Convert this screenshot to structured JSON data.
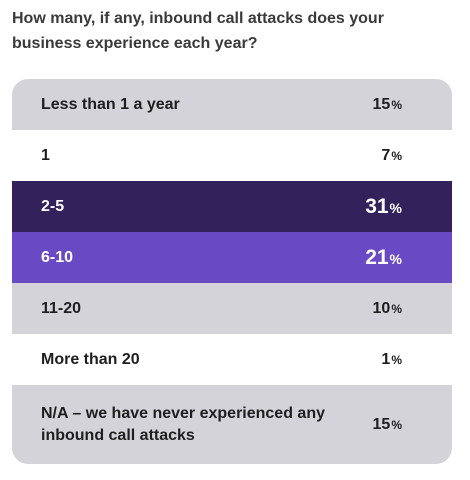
{
  "question": "How many, if any, inbound call attacks does your business experience each year?",
  "colors": {
    "gray": "#d4d3d9",
    "white": "#ffffff",
    "dark_purple": "#33215c",
    "purple": "#6a49c5"
  },
  "chart_data": {
    "type": "table",
    "title": "How many, if any, inbound call attacks does your business experience each year?",
    "rows": [
      {
        "label": "Less than 1 a year",
        "value": 15,
        "display": "15",
        "unit": "%",
        "color": "#d4d3d9"
      },
      {
        "label": "1",
        "value": 7,
        "display": "7",
        "unit": "%",
        "color": "#ffffff"
      },
      {
        "label": "2-5",
        "value": 31,
        "display": "31",
        "unit": "%",
        "color": "#33215c"
      },
      {
        "label": "6-10",
        "value": 21,
        "display": "21",
        "unit": "%",
        "color": "#6a49c5"
      },
      {
        "label": "11-20",
        "value": 10,
        "display": "10",
        "unit": "%",
        "color": "#d4d3d9"
      },
      {
        "label": "More than 20",
        "value": 1,
        "display": "1",
        "unit": "%",
        "color": "#ffffff"
      },
      {
        "label": "N/A – we have never experienced any inbound call attacks",
        "value": 15,
        "display": "15",
        "unit": "%",
        "color": "#d4d3d9"
      }
    ]
  }
}
